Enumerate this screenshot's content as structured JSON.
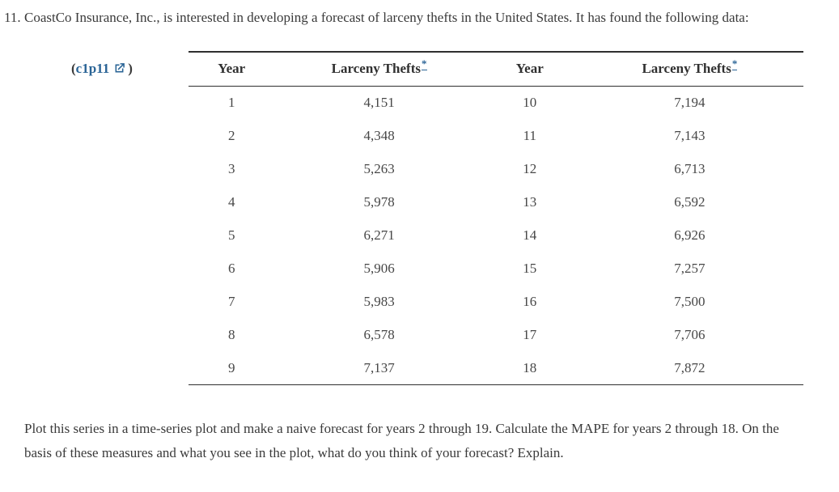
{
  "page": {
    "background": "#ffffff",
    "text_color": "#3a3a3a",
    "link_color": "#2a6496",
    "border_color": "#2f2f2f"
  },
  "problem": {
    "number": "11.",
    "intro": "CoastCo Insurance, Inc., is interested in developing a forecast of larceny thefts in the United States. It has found the following data:",
    "resource_link": {
      "open_paren": "(",
      "label": "c1p11",
      "icon": "external-link-icon",
      "close_paren": ")"
    },
    "closing": "Plot this series in a time-series plot and make a naive forecast for years 2 through 19. Calculate the MAPE for years 2 through 18. On the basis of these measures and what you see in the plot, what do you think of your forecast? Explain."
  },
  "table": {
    "headers": [
      {
        "label": "Year",
        "footnote": ""
      },
      {
        "label": "Larceny Thefts",
        "footnote": "*"
      },
      {
        "label": "Year",
        "footnote": ""
      },
      {
        "label": "Larceny Thefts",
        "footnote": "*"
      }
    ],
    "rows": [
      [
        "1",
        "4,151",
        "10",
        "7,194"
      ],
      [
        "2",
        "4,348",
        "11",
        "7,143"
      ],
      [
        "3",
        "5,263",
        "12",
        "6,713"
      ],
      [
        "4",
        "5,978",
        "13",
        "6,592"
      ],
      [
        "5",
        "6,271",
        "14",
        "6,926"
      ],
      [
        "6",
        "5,906",
        "15",
        "7,257"
      ],
      [
        "7",
        "5,983",
        "16",
        "7,500"
      ],
      [
        "8",
        "6,578",
        "17",
        "7,706"
      ],
      [
        "9",
        "7,137",
        "18",
        "7,872"
      ]
    ]
  }
}
